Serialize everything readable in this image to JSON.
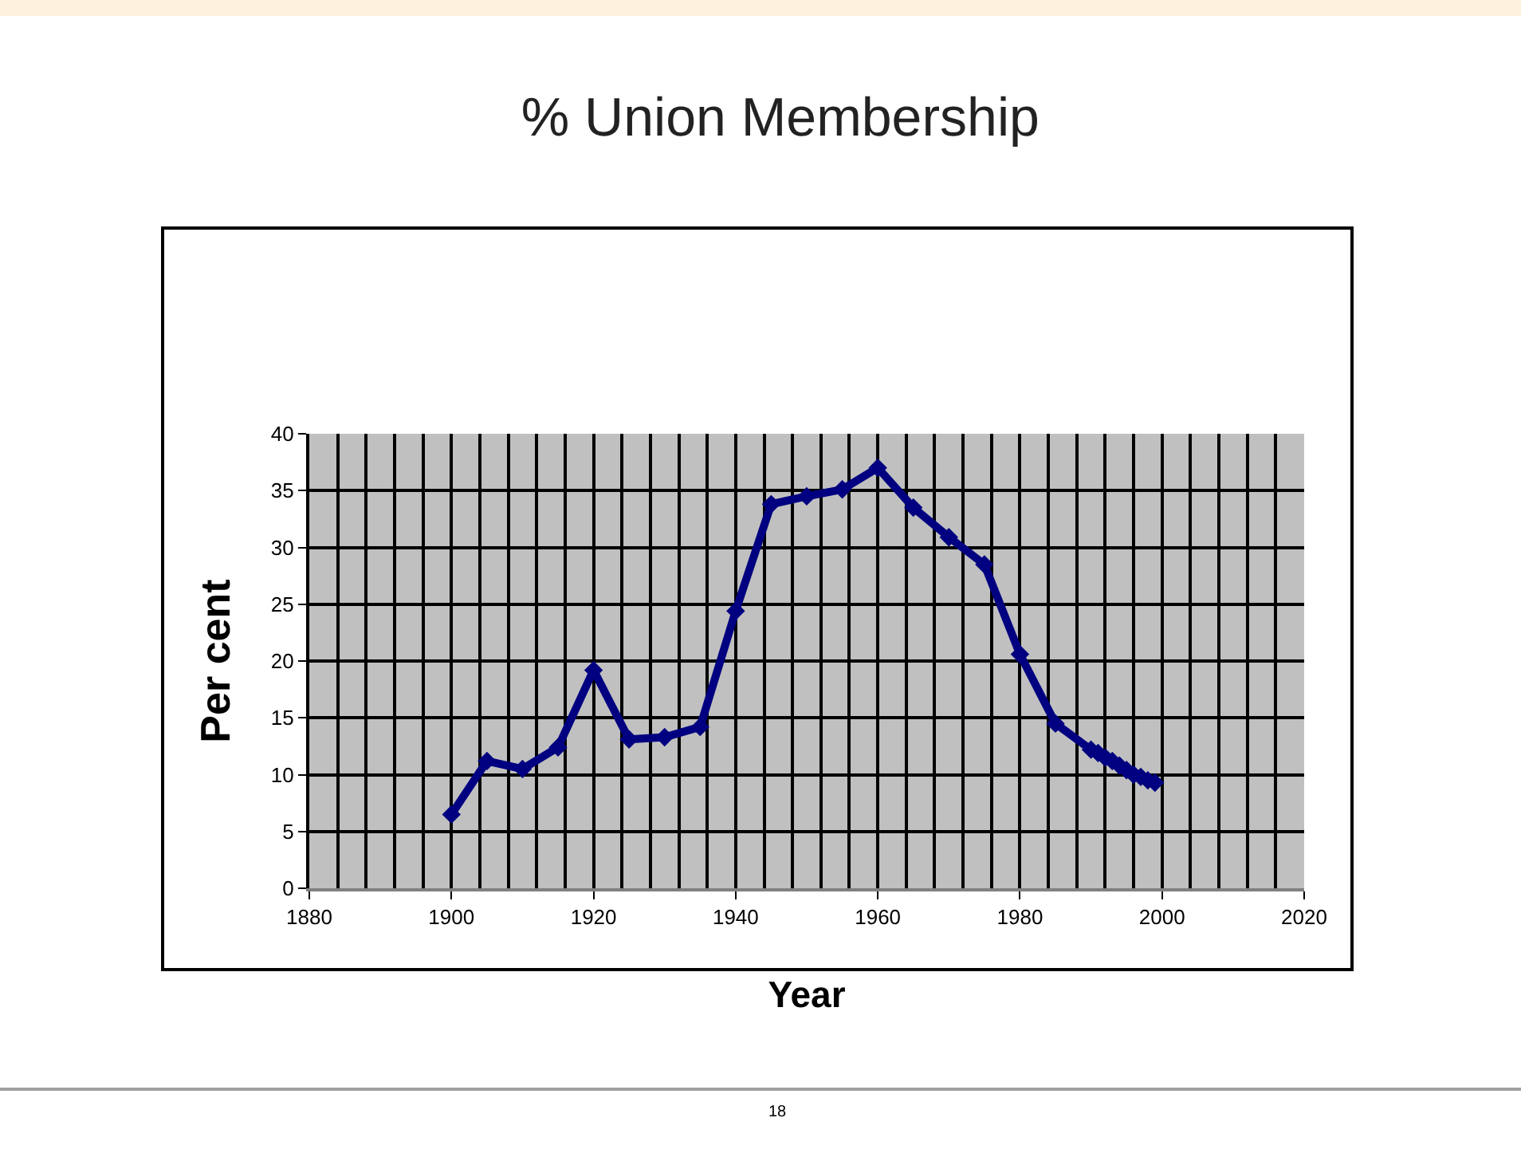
{
  "chart_data": {
    "type": "line",
    "title": "% Union Membership",
    "xlabel": "Year",
    "ylabel": "Per cent",
    "x": [
      1900,
      1905,
      1910,
      1915,
      1920,
      1925,
      1930,
      1935,
      1940,
      1945,
      1950,
      1955,
      1960,
      1965,
      1970,
      1975,
      1980,
      1985,
      1990,
      1991,
      1992,
      1993,
      1994,
      1995,
      1996,
      1997,
      1998,
      1999
    ],
    "series": [
      {
        "color": "#000080",
        "values": [
          6.5,
          11.2,
          10.5,
          12.4,
          19.2,
          13.1,
          13.3,
          14.2,
          24.4,
          33.8,
          34.5,
          35.1,
          37.0,
          33.5,
          30.9,
          28.5,
          20.6,
          14.5,
          12.2,
          11.9,
          11.5,
          11.2,
          10.8,
          10.4,
          10.0,
          9.8,
          9.5,
          9.3
        ]
      }
    ],
    "xlim": [
      1880,
      2020
    ],
    "xticks": [
      1880,
      1900,
      1920,
      1940,
      1960,
      1980,
      2000,
      2020
    ],
    "ylim": [
      0,
      40
    ],
    "yticks": [
      0,
      5,
      10,
      15,
      20,
      25,
      30,
      35,
      40
    ],
    "grid": true,
    "marker": "diamond",
    "line_style": "solid",
    "annotations": [
      "18"
    ]
  }
}
